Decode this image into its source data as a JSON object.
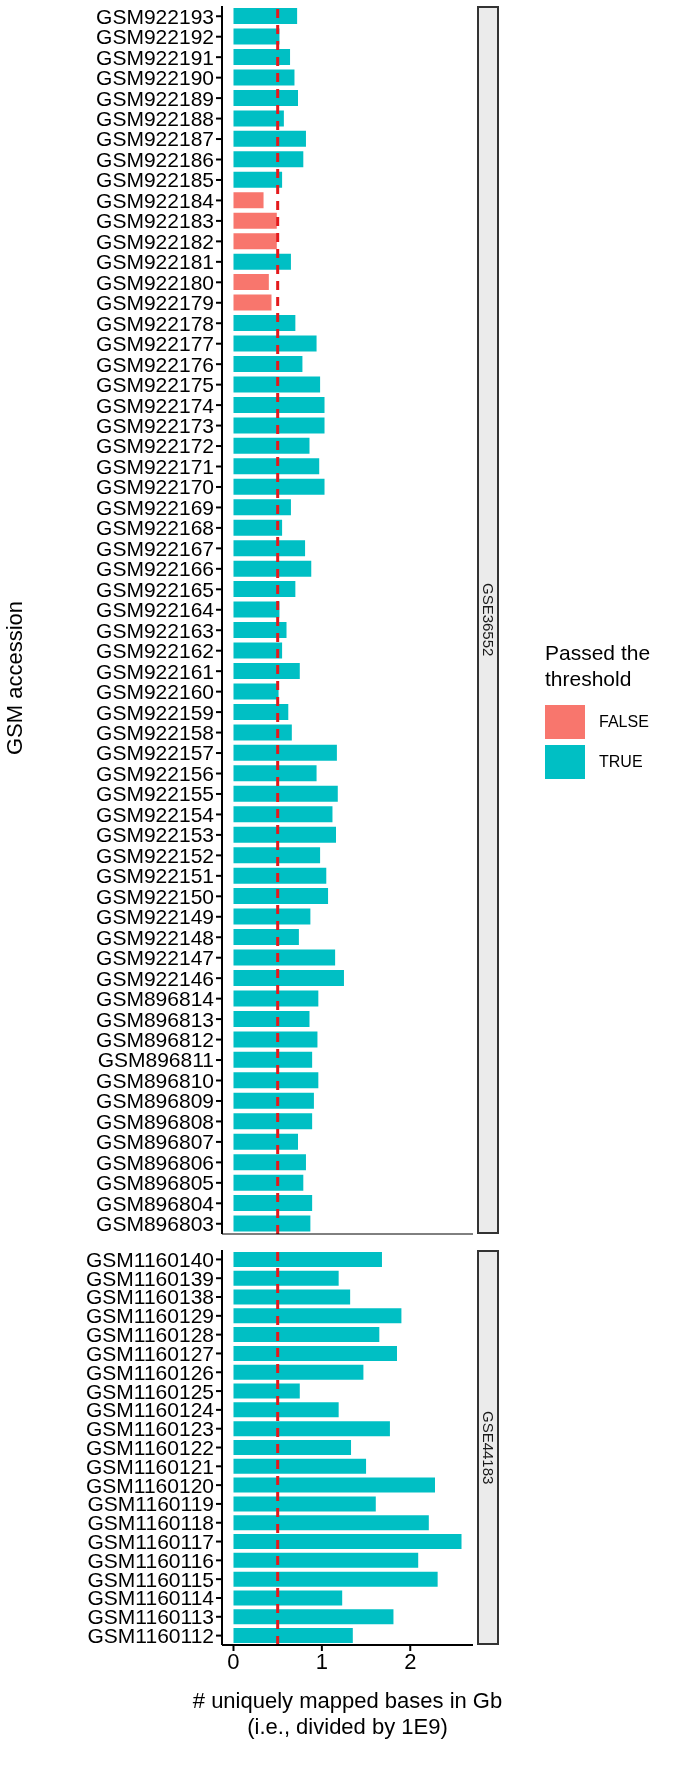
{
  "chart_data": [
    {
      "type": "bar",
      "orientation": "horizontal",
      "stacked": true,
      "subtitle": "GSE36552",
      "ylabel": "GSM accession",
      "legend_title": "Passed the threshold",
      "legend": "right",
      "tick_labels": "y",
      "xlim": [
        -0.13,
        2.71
      ],
      "xticks": [
        0,
        1,
        2
      ],
      "categories": [
        "GSM922193",
        "GSM922192",
        "GSM922191",
        "GSM922190",
        "GSM922189",
        "GSM922188",
        "GSM922187",
        "GSM922186",
        "GSM922185",
        "GSM922184",
        "GSM922183",
        "GSM922182",
        "GSM922181",
        "GSM922180",
        "GSM922179",
        "GSM922178",
        "GSM922177",
        "GSM922176",
        "GSM922175",
        "GSM922174",
        "GSM922173",
        "GSM922172",
        "GSM922171",
        "GSM922170",
        "GSM922169",
        "GSM922168",
        "GSM922167",
        "GSM922166",
        "GSM922165",
        "GSM922164",
        "GSM922163",
        "GSM922162",
        "GSM922161",
        "GSM922160",
        "GSM922159",
        "GSM922158",
        "GSM922157",
        "GSM922156",
        "GSM922155",
        "GSM922154",
        "GSM922153",
        "GSM922152",
        "GSM922151",
        "GSM922150",
        "GSM922149",
        "GSM922148",
        "GSM922147",
        "GSM922146",
        "GSM896814",
        "GSM896813",
        "GSM896812",
        "GSM896811",
        "GSM896810",
        "GSM896809",
        "GSM896808",
        "GSM896807",
        "GSM896806",
        "GSM896805",
        "GSM896804",
        "GSM896803"
      ],
      "series": [
        {
          "name": "FALSE",
          "color": "#f8766d",
          "values": [
            null,
            null,
            null,
            null,
            null,
            null,
            null,
            null,
            null,
            0.34,
            0.49,
            0.49,
            null,
            0.4,
            0.43,
            null,
            null,
            null,
            null,
            null,
            null,
            null,
            null,
            null,
            null,
            null,
            null,
            null,
            null,
            null,
            null,
            null,
            null,
            null,
            null,
            null,
            null,
            null,
            null,
            null,
            null,
            null,
            null,
            null,
            null,
            null,
            null,
            null,
            null,
            null,
            null,
            null,
            null,
            null,
            null,
            null,
            null,
            null,
            null,
            null
          ]
        },
        {
          "name": "TRUE",
          "color": "#00bfc4",
          "values": [
            0.72,
            0.52,
            0.64,
            0.69,
            0.73,
            0.57,
            0.82,
            0.79,
            0.55,
            null,
            null,
            null,
            0.65,
            null,
            null,
            0.7,
            0.94,
            0.78,
            0.98,
            1.03,
            1.03,
            0.86,
            0.97,
            1.03,
            0.65,
            0.55,
            0.81,
            0.88,
            0.7,
            0.52,
            0.6,
            0.55,
            0.75,
            0.51,
            0.62,
            0.66,
            1.17,
            0.94,
            1.18,
            1.12,
            1.16,
            0.98,
            1.05,
            1.07,
            0.87,
            0.74,
            1.15,
            1.25,
            0.96,
            0.86,
            0.95,
            0.89,
            0.96,
            0.91,
            0.89,
            0.73,
            0.82,
            0.79,
            0.89,
            0.87
          ]
        }
      ],
      "ref_lines": [
        {
          "axis": "x",
          "value": 0.5,
          "color": "#e41a1c",
          "line_style": "dashed"
        }
      ]
    },
    {
      "type": "bar",
      "orientation": "horizontal",
      "stacked": true,
      "subtitle": "GSE44183",
      "xlabel": "# uniquely mapped bases in Gb\n(i.e., divided by 1E9)",
      "xlim": [
        -0.13,
        2.71
      ],
      "xticks": [
        0,
        1,
        2
      ],
      "categories": [
        "GSM1160140",
        "GSM1160139",
        "GSM1160138",
        "GSM1160129",
        "GSM1160128",
        "GSM1160127",
        "GSM1160126",
        "GSM1160125",
        "GSM1160124",
        "GSM1160123",
        "GSM1160122",
        "GSM1160121",
        "GSM1160120",
        "GSM1160119",
        "GSM1160118",
        "GSM1160117",
        "GSM1160116",
        "GSM1160115",
        "GSM1160114",
        "GSM1160113",
        "GSM1160112"
      ],
      "series": [
        {
          "color": "#00bfc4",
          "values": [
            1.68,
            1.19,
            1.32,
            1.9,
            1.65,
            1.85,
            1.47,
            0.75,
            1.19,
            1.77,
            1.33,
            1.5,
            2.28,
            1.61,
            2.21,
            2.58,
            2.09,
            2.31,
            1.23,
            1.81,
            1.35
          ]
        }
      ],
      "ref_lines": [
        {
          "axis": "x",
          "value": 0.5,
          "color": "#e41a1c",
          "line_style": "dashed"
        }
      ]
    }
  ]
}
